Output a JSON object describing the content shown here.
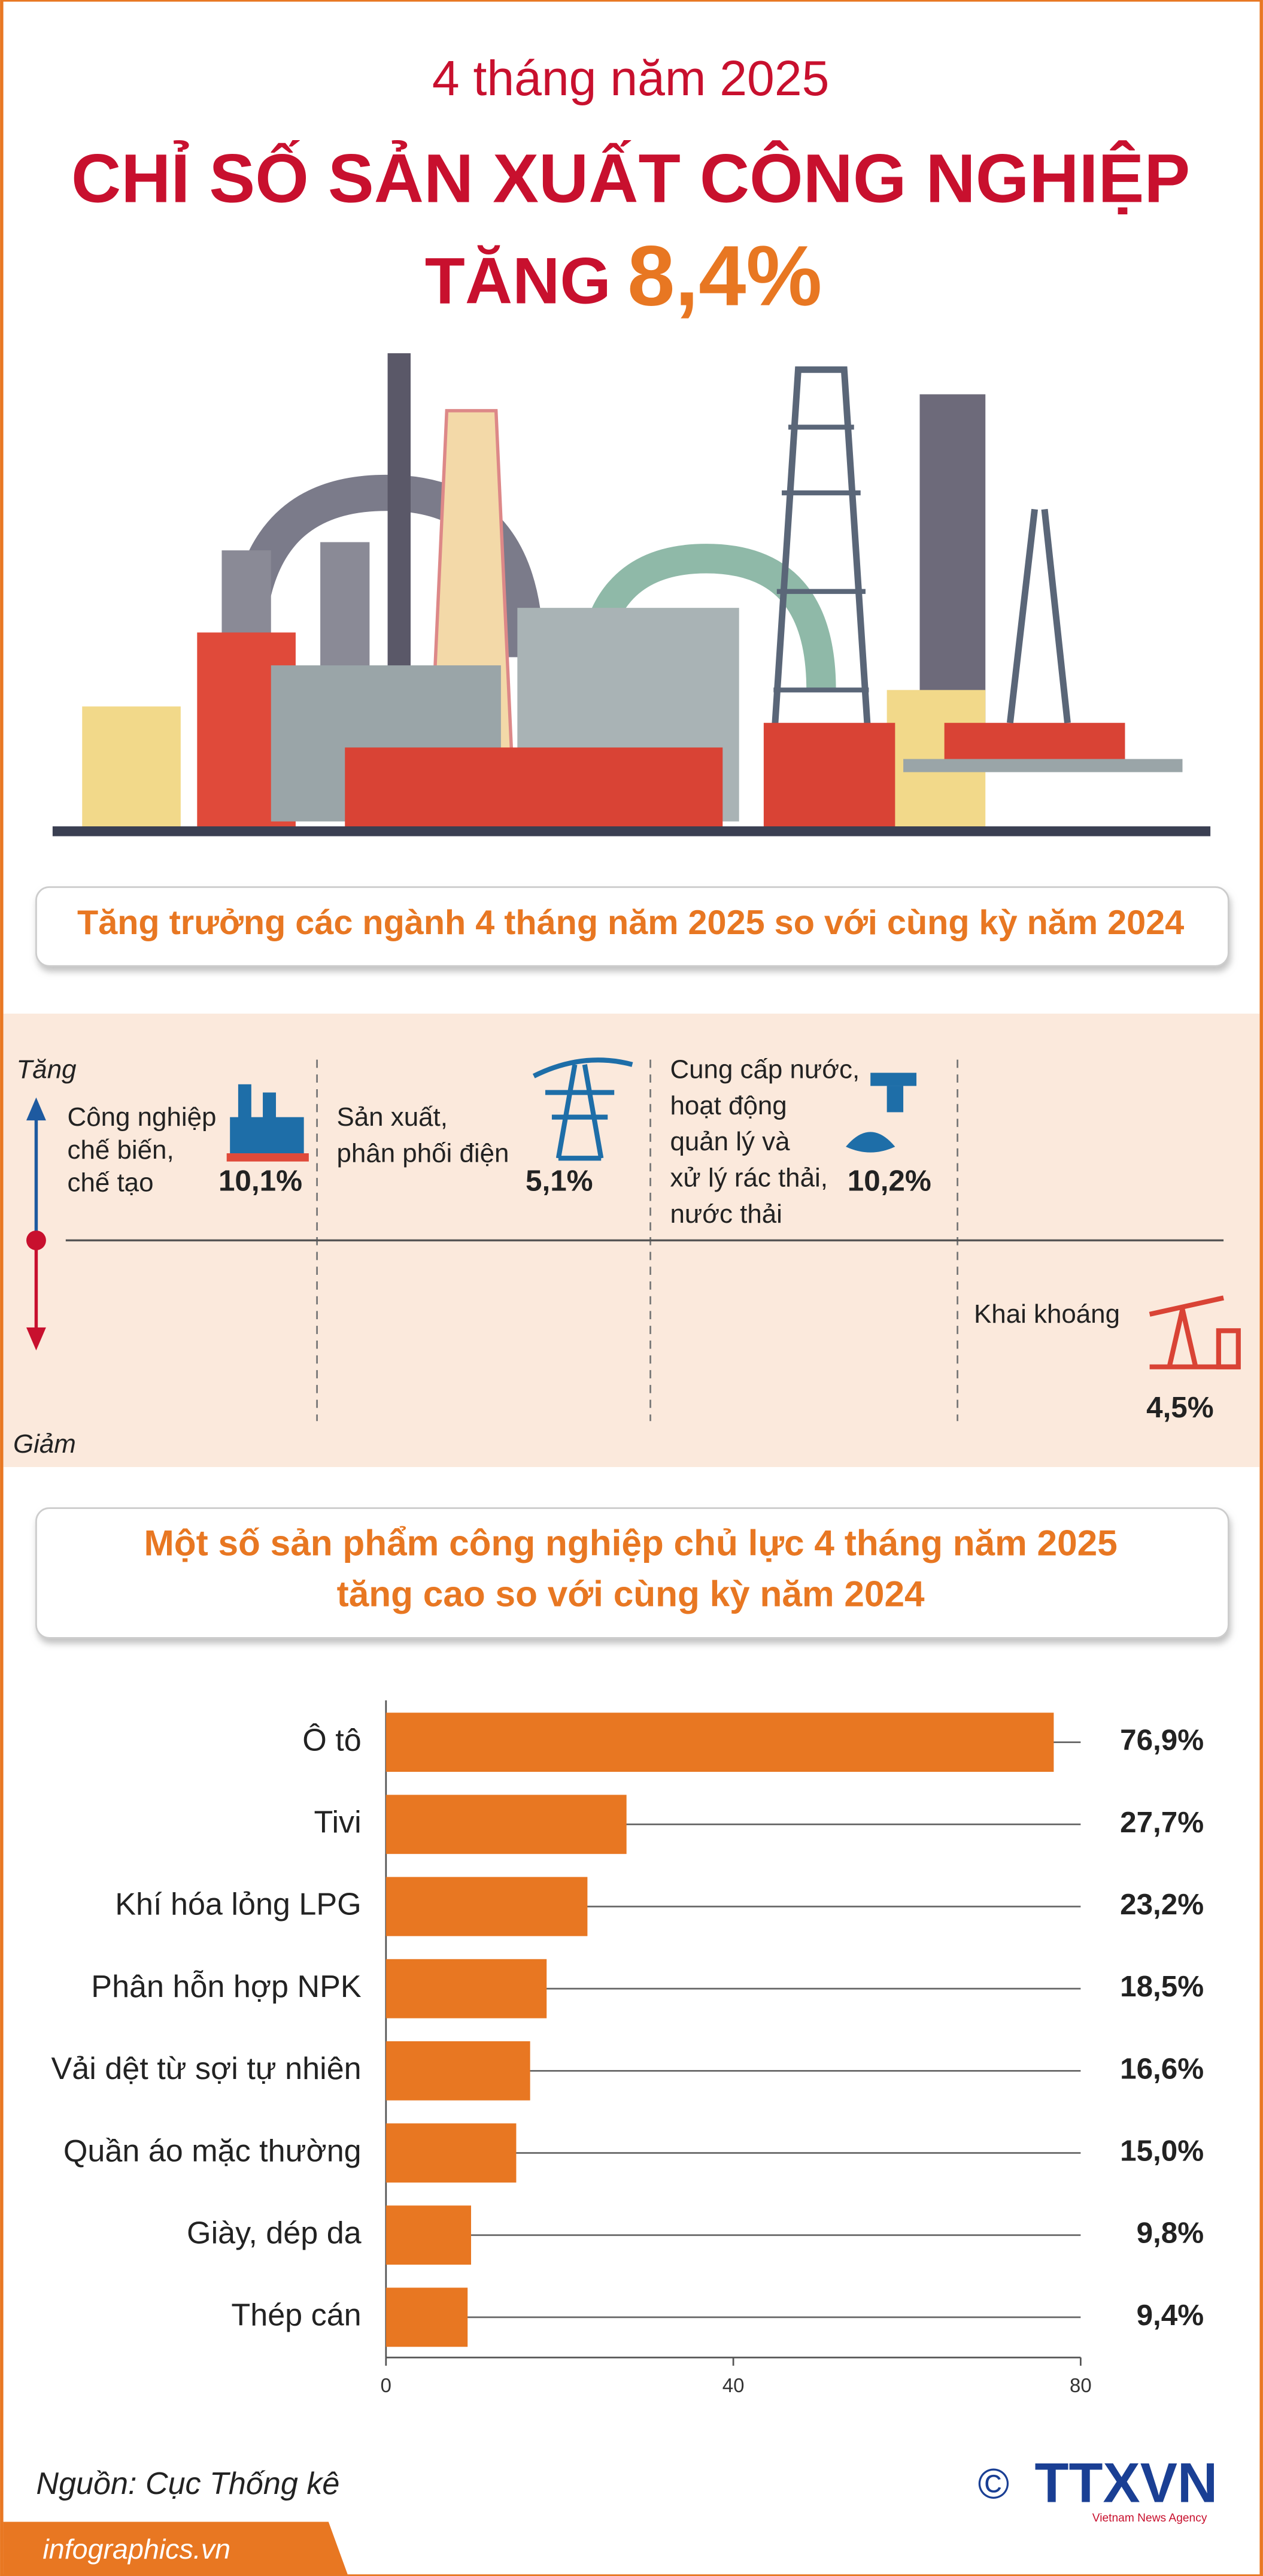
{
  "header": {
    "subtitle": "4 tháng năm 2025",
    "title": "CHỈ SỐ SẢN XUẤT CÔNG NGHIỆP",
    "title_prefix": "TĂNG",
    "highlight": "8,4%"
  },
  "growth": {
    "heading": "Tăng trưởng các ngành 4 tháng năm 2025 so với cùng kỳ năm 2024",
    "increase_label": "Tăng",
    "decrease_label": "Giảm",
    "sectors": [
      {
        "label_lines": [
          "Công nghiệp",
          "chế biến,",
          "chế tạo"
        ],
        "value": "10,1%"
      },
      {
        "label_lines": [
          "Sản xuất,",
          "phân phối điện"
        ],
        "value": "5,1%"
      },
      {
        "label_lines": [
          "Cung cấp nước,",
          "hoạt động",
          "quản lý và",
          "xử lý rác thải,",
          "nước thải"
        ],
        "value": "10,2%"
      },
      {
        "label_lines": [
          "Khai khoáng"
        ],
        "value": "4,5%"
      }
    ]
  },
  "chart_data": {
    "type": "bar",
    "orientation": "horizontal",
    "title_lines": [
      "Một số sản phẩm công nghiệp chủ lực 4 tháng năm 2025",
      "tăng cao so với cùng kỳ năm 2024"
    ],
    "categories": [
      "Ô tô",
      "Tivi",
      "Khí hóa lỏng LPG",
      "Phân hỗn hợp NPK",
      "Vải dệt từ sợi tự nhiên",
      "Quần áo mặc thường",
      "Giày, dép da",
      "Thép cán"
    ],
    "values": [
      76.9,
      27.7,
      23.2,
      18.5,
      16.6,
      15.0,
      9.8,
      9.4
    ],
    "value_labels": [
      "76,9%",
      "27,7%",
      "23,2%",
      "18,5%",
      "16,6%",
      "15,0%",
      "9,8%",
      "9,4%"
    ],
    "color": "#e87722",
    "xlim": [
      0,
      80
    ],
    "xticks": [
      0,
      40,
      80
    ]
  },
  "footer": {
    "source": "Nguồn: Cục Thống kê",
    "website": "infographics.vn",
    "logo": "TTXVN",
    "logo_tagline": "Vietnam News Agency",
    "copyright": "©"
  }
}
